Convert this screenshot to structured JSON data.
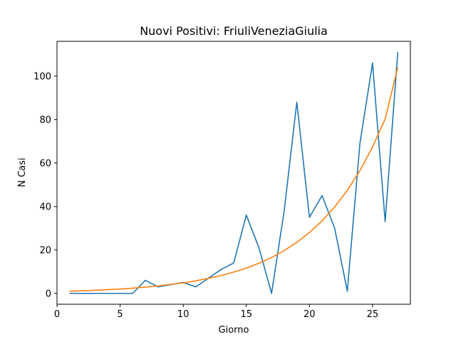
{
  "chart_data": {
    "type": "line",
    "title": "Nuovi Positivi: FriuliVeneziaGiulia",
    "xlabel": "Giorno",
    "ylabel": "N Casi",
    "xlim": [
      0,
      28
    ],
    "ylim": [
      -5,
      116
    ],
    "xticks": [
      0,
      5,
      10,
      15,
      20,
      25
    ],
    "yticks": [
      0,
      20,
      40,
      60,
      80,
      100
    ],
    "grid": false,
    "x": [
      1,
      2,
      3,
      4,
      5,
      6,
      7,
      8,
      9,
      10,
      11,
      12,
      13,
      14,
      15,
      16,
      17,
      18,
      19,
      20,
      21,
      22,
      23,
      24,
      25,
      26,
      27
    ],
    "series": [
      {
        "color": "#1f77b4",
        "values": [
          0,
          0,
          0,
          0,
          0,
          0,
          6,
          3,
          4,
          5,
          3,
          7,
          11,
          14,
          36,
          21,
          0,
          38,
          88,
          35,
          45,
          30,
          1,
          69,
          106,
          33,
          111
        ]
      },
      {
        "color": "#ff7f0e",
        "values": [
          1.0,
          1.2,
          1.4,
          1.7,
          2.0,
          2.4,
          2.9,
          3.4,
          4.1,
          4.8,
          5.8,
          6.9,
          8.2,
          9.8,
          11.6,
          13.9,
          16.5,
          19.7,
          23.5,
          28.0,
          33.4,
          39.8,
          47.4,
          56.5,
          67.4,
          80.3,
          104.0
        ]
      }
    ]
  }
}
